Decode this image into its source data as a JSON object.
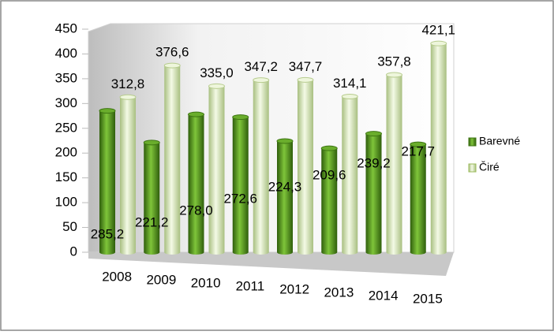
{
  "chart_data": {
    "type": "bar",
    "categories": [
      "2008",
      "2009",
      "2010",
      "2011",
      "2012",
      "2013",
      "2014",
      "2015"
    ],
    "series": [
      {
        "name": "Barevné",
        "color": "#5a9e1e",
        "values": [
          285.2,
          221.2,
          278.0,
          272.6,
          224.3,
          209.6,
          239.2,
          217.7
        ],
        "value_labels": [
          "285,2",
          "221,2",
          "278,0",
          "272,6",
          "224,3",
          "209,6",
          "239,2",
          "217,7"
        ]
      },
      {
        "name": "Čiré",
        "color": "#dcebc0",
        "values": [
          312.8,
          376.6,
          335.0,
          347.2,
          347.7,
          314.1,
          357.8,
          421.1
        ],
        "value_labels": [
          "312,8",
          "376,6",
          "335,0",
          "347,2",
          "347,7",
          "314,1",
          "357,8",
          "421,1"
        ]
      }
    ],
    "ylim": [
      0,
      450
    ],
    "yticks": [
      0,
      50,
      100,
      150,
      200,
      250,
      300,
      350,
      400,
      450
    ],
    "legend": "right"
  }
}
